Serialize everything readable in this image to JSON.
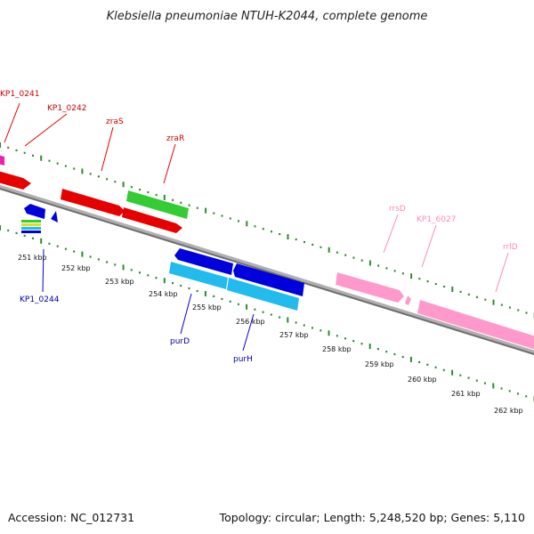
{
  "title": "Klebsiella pneumoniae NTUH-K2044, complete genome",
  "accession_text": "Accession: NC_012731",
  "summary_text": "Topology: circular; Length: 5,248,520 bp; Genes: 5,110",
  "colors": {
    "backbone": "#8a8a8a",
    "tick_dots": "#2e8b2e",
    "red": "#e60000",
    "green": "#33cc33",
    "blue": "#0000dd",
    "cyan": "#22bbee",
    "pink": "#ff99cc",
    "magenta": "#ee22aa",
    "label_red": "#cc0000",
    "label_blue": "#0000aa",
    "label_pink": "#ff88bb"
  },
  "axis_ticks": [
    {
      "label": "251 kbp"
    },
    {
      "label": "252 kbp"
    },
    {
      "label": "253 kbp"
    },
    {
      "label": "254 kbp"
    },
    {
      "label": "255 kbp"
    },
    {
      "label": "256 kbp"
    },
    {
      "label": "257 kbp"
    },
    {
      "label": "258 kbp"
    },
    {
      "label": "259 kbp"
    },
    {
      "label": "260 kbp"
    },
    {
      "label": "261 kbp"
    },
    {
      "label": "262 kbp"
    }
  ],
  "gene_labels": [
    {
      "name": "KP1_0241",
      "color": "red"
    },
    {
      "name": "KP1_0242",
      "color": "red"
    },
    {
      "name": "zraS",
      "color": "red"
    },
    {
      "name": "zraR",
      "color": "red"
    },
    {
      "name": "rrsD",
      "color": "pink"
    },
    {
      "name": "KP1_6027",
      "color": "pink"
    },
    {
      "name": "rrlD",
      "color": "pink"
    },
    {
      "name": "KP1_0244",
      "color": "blue"
    },
    {
      "name": "purD",
      "color": "blue"
    },
    {
      "name": "purH",
      "color": "blue"
    }
  ]
}
